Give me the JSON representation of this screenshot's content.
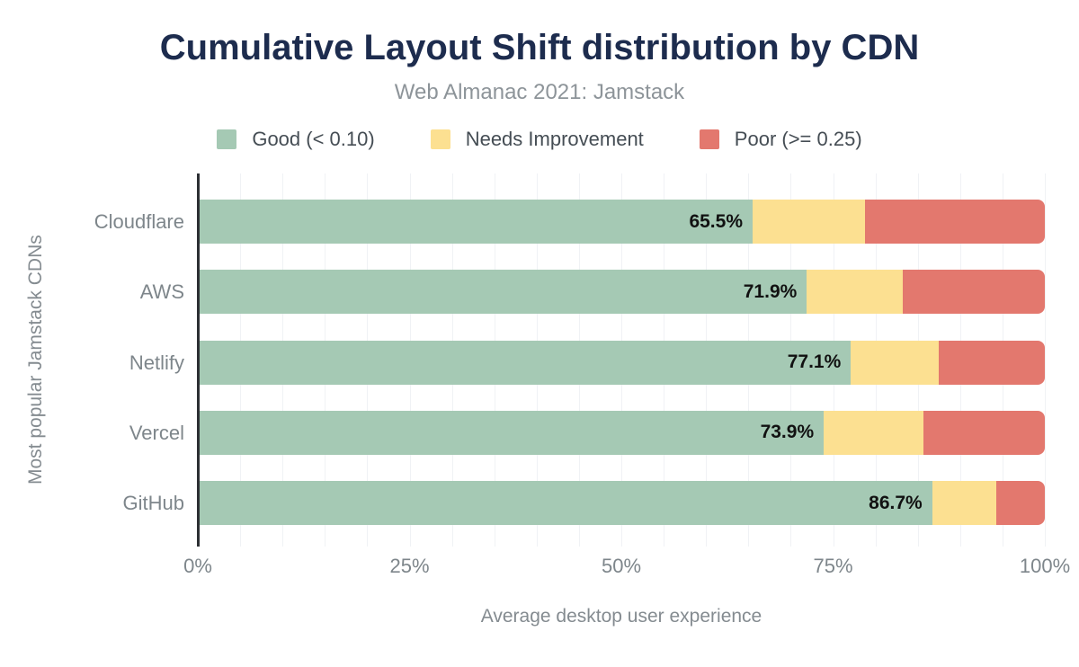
{
  "chart_data": {
    "type": "bar",
    "orientation": "horizontal-stacked",
    "title": "Cumulative Layout Shift distribution by CDN",
    "subtitle": "Web Almanac 2021: Jamstack",
    "categories": [
      "Cloudflare",
      "AWS",
      "Netlify",
      "Vercel",
      "GitHub"
    ],
    "series": [
      {
        "name": "Good (< 0.10)",
        "color": "#a5c9b4",
        "values": [
          65.5,
          71.9,
          77.1,
          73.9,
          86.7
        ]
      },
      {
        "name": "Needs Improvement",
        "color": "#fce091",
        "values": [
          13.3,
          11.3,
          10.4,
          11.8,
          7.6
        ]
      },
      {
        "name": "Poor (>= 0.25)",
        "color": "#e3786e",
        "values": [
          21.2,
          16.8,
          12.5,
          14.3,
          5.7
        ]
      }
    ],
    "bar_labels": [
      "65.5%",
      "71.9%",
      "77.1%",
      "73.9%",
      "86.7%"
    ],
    "xlabel": "Average desktop user experience",
    "ylabel": "Most popular Jamstack CDNs",
    "x_ticks": [
      {
        "value": 0,
        "label": "0%"
      },
      {
        "value": 25,
        "label": "25%"
      },
      {
        "value": 50,
        "label": "50%"
      },
      {
        "value": 75,
        "label": "75%"
      },
      {
        "value": 100,
        "label": "100%"
      }
    ],
    "xlim": [
      0,
      100
    ],
    "grid": {
      "vertical_minor_every_percent": 5
    },
    "legend_position": "top"
  },
  "colors": {
    "title": "#1d2c4e",
    "subtitle": "#8d9499",
    "axis_text": "#7e868b",
    "axis_line": "#2c2f33",
    "gridline": "#f0f2f5",
    "data_label": "#111111",
    "good": "#a5c9b4",
    "needs_improvement": "#fce091",
    "poor": "#e3786e"
  }
}
